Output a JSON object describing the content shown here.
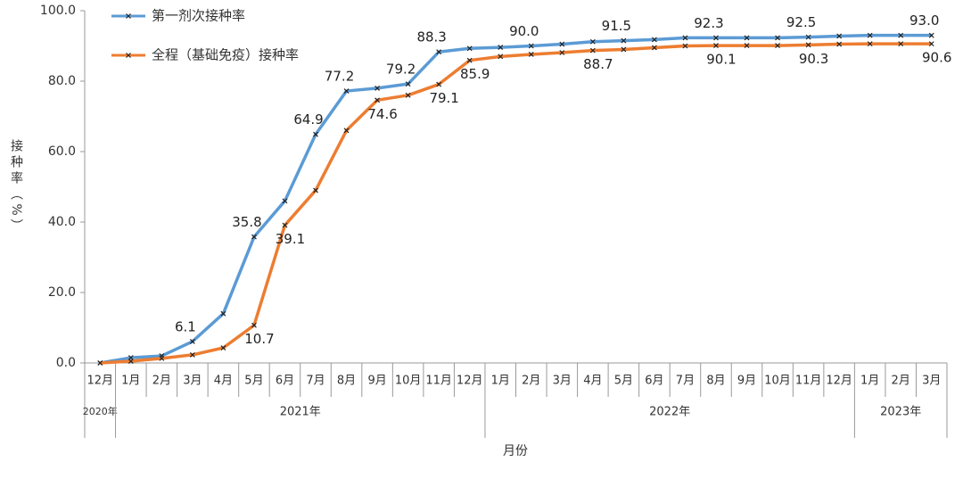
{
  "chart_data": {
    "type": "line",
    "categories": [
      "12月",
      "1月",
      "2月",
      "3月",
      "4月",
      "5月",
      "6月",
      "7月",
      "8月",
      "9月",
      "10月",
      "11月",
      "12月",
      "1月",
      "2月",
      "3月",
      "4月",
      "5月",
      "6月",
      "7月",
      "8月",
      "9月",
      "10月",
      "11月",
      "12月",
      "1月",
      "2月",
      "3月"
    ],
    "year_groups": [
      {
        "label": "2020年",
        "size": 1
      },
      {
        "label": "2021年",
        "size": 12
      },
      {
        "label": "2022年",
        "size": 12
      },
      {
        "label": "2023年",
        "size": 3
      }
    ],
    "series": [
      {
        "name": "第一剂次接种率",
        "color": "#5b9bd5",
        "values": [
          0,
          1.5,
          2,
          6.1,
          14,
          35.8,
          46,
          64.9,
          77.2,
          78,
          79.2,
          88.3,
          89.3,
          89.6,
          90.0,
          90.5,
          91.2,
          91.5,
          91.8,
          92.3,
          92.3,
          92.3,
          92.3,
          92.5,
          92.8,
          93.0,
          93.0,
          93.0
        ],
        "value_labels": [
          null,
          null,
          null,
          "6.1",
          null,
          "35.8",
          null,
          "64.9",
          "77.2",
          null,
          "79.2",
          "88.3",
          null,
          null,
          "90.0",
          null,
          null,
          "91.5",
          null,
          null,
          "92.3",
          null,
          null,
          "92.5",
          null,
          null,
          null,
          "93.0"
        ]
      },
      {
        "name": "全程（基础免疫）接种率",
        "color": "#ed7d31",
        "values": [
          0,
          0.5,
          1.3,
          2.3,
          4.3,
          10.7,
          39.1,
          49,
          66,
          74.6,
          76,
          79.1,
          85.9,
          87,
          87.6,
          88.1,
          88.7,
          89,
          89.5,
          90,
          90.1,
          90.1,
          90.1,
          90.3,
          90.5,
          90.6,
          90.6,
          90.6
        ],
        "value_labels": [
          null,
          null,
          null,
          null,
          null,
          "10.7",
          "39.1",
          null,
          null,
          "74.6",
          null,
          "79.1",
          "85.9",
          null,
          null,
          null,
          "88.7",
          null,
          null,
          null,
          "90.1",
          null,
          null,
          "90.3",
          null,
          null,
          null,
          "90.6"
        ]
      }
    ],
    "ylim": [
      0,
      100
    ],
    "yticks": [
      {
        "value": 0,
        "label": "0.0"
      },
      {
        "value": 20,
        "label": "20.0"
      },
      {
        "value": 40,
        "label": "40.0"
      },
      {
        "value": 60,
        "label": "60.0"
      },
      {
        "value": 80,
        "label": "80.0"
      },
      {
        "value": 100,
        "label": "100.0"
      }
    ],
    "y_label": "接种率（%）",
    "x_label": "月份"
  }
}
